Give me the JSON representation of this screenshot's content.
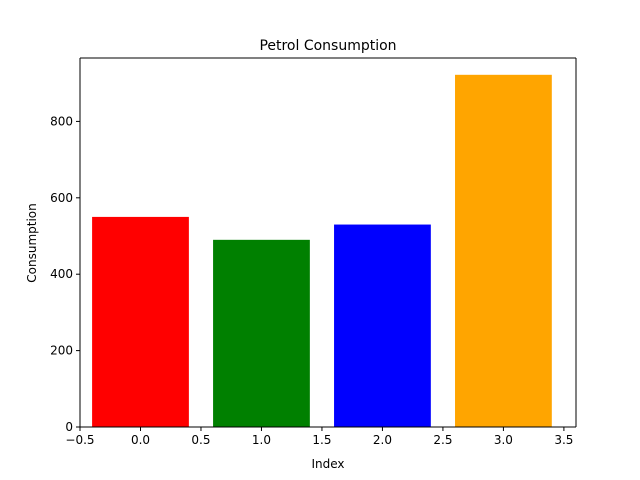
{
  "chart_data": {
    "type": "bar",
    "title": "Petrol Consumption",
    "xlabel": "Index",
    "ylabel": "Consumption",
    "x": [
      0,
      1,
      2,
      3
    ],
    "values": [
      550,
      490,
      530,
      922
    ],
    "bar_colors": [
      "#ff0000",
      "#008000",
      "#0000ff",
      "#ffa500"
    ],
    "xlim": [
      -0.5,
      3.6
    ],
    "ylim": [
      0,
      966
    ],
    "xticks": [
      -0.5,
      0.0,
      0.5,
      1.0,
      1.5,
      2.0,
      2.5,
      3.0,
      3.5
    ],
    "xtick_labels": [
      "−0.5",
      "0.0",
      "0.5",
      "1.0",
      "1.5",
      "2.0",
      "2.5",
      "3.0",
      "3.5"
    ],
    "yticks": [
      0,
      200,
      400,
      600,
      800
    ],
    "ytick_labels": [
      "0",
      "200",
      "400",
      "600",
      "800"
    ],
    "grid": false,
    "legend": "none"
  }
}
